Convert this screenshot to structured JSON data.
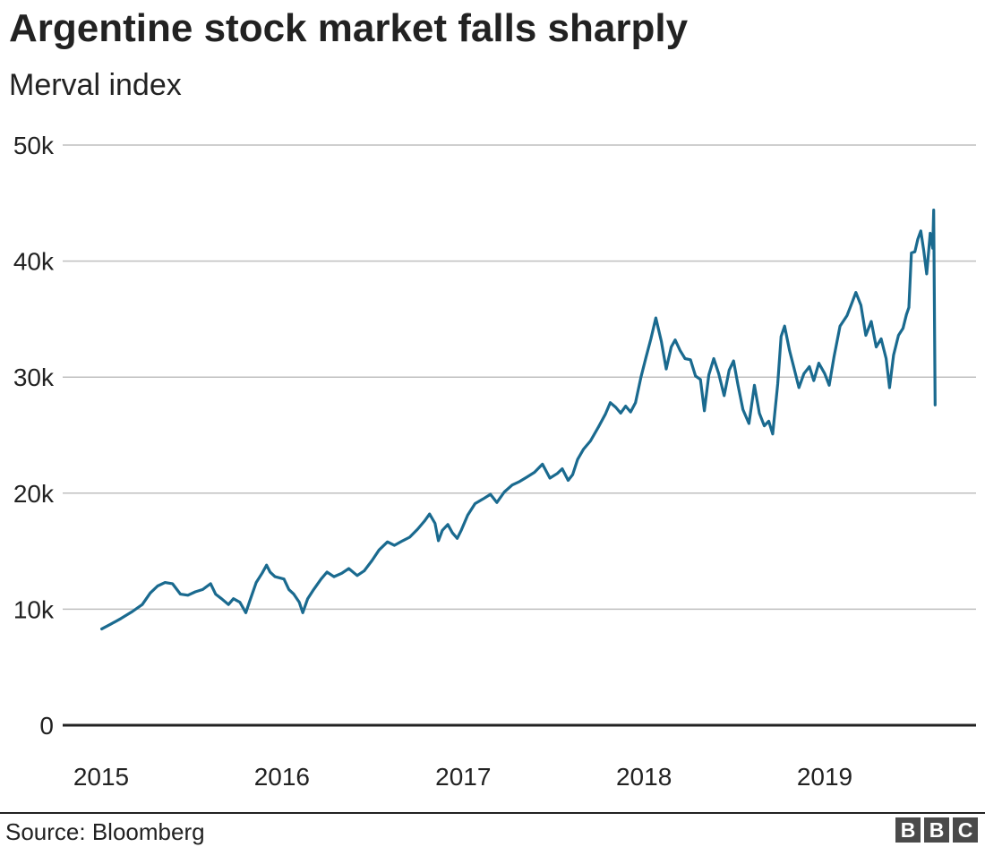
{
  "chart_data": {
    "type": "line",
    "title": "Argentine stock market falls sharply",
    "subtitle": "Merval index",
    "source": "Source: Bloomberg",
    "logo": [
      "B",
      "B",
      "C"
    ],
    "ylim": [
      0,
      50000
    ],
    "y_ticks": [
      {
        "value": 50000,
        "label": "50k"
      },
      {
        "value": 40000,
        "label": "40k"
      },
      {
        "value": 30000,
        "label": "30k"
      },
      {
        "value": 20000,
        "label": "20k"
      },
      {
        "value": 10000,
        "label": "10k"
      },
      {
        "value": 0,
        "label": "0"
      }
    ],
    "xlim": [
      "2015-01-01",
      "2019-09-01"
    ],
    "x_ticks": [
      {
        "value": "2015-01-01",
        "label": "2015"
      },
      {
        "value": "2016-01-01",
        "label": "2016"
      },
      {
        "value": "2017-01-01",
        "label": "2017"
      },
      {
        "value": "2018-01-01",
        "label": "2018"
      },
      {
        "value": "2019-01-01",
        "label": "2019"
      }
    ],
    "grid": true,
    "colors": {
      "line": "#1a6a8f",
      "grid": "#bfbfbf",
      "axis": "#222222"
    },
    "series": [
      {
        "name": "",
        "points": [
          [
            "2015-01-02",
            8300
          ],
          [
            "2015-01-20",
            8700
          ],
          [
            "2015-02-10",
            9200
          ],
          [
            "2015-03-05",
            9800
          ],
          [
            "2015-03-25",
            10400
          ],
          [
            "2015-04-10",
            11400
          ],
          [
            "2015-04-25",
            12000
          ],
          [
            "2015-05-10",
            12300
          ],
          [
            "2015-05-25",
            12200
          ],
          [
            "2015-06-10",
            11300
          ],
          [
            "2015-06-25",
            11200
          ],
          [
            "2015-07-10",
            11500
          ],
          [
            "2015-07-25",
            11700
          ],
          [
            "2015-08-10",
            12200
          ],
          [
            "2015-08-20",
            11300
          ],
          [
            "2015-09-01",
            10900
          ],
          [
            "2015-09-15",
            10400
          ],
          [
            "2015-09-25",
            10900
          ],
          [
            "2015-10-08",
            10600
          ],
          [
            "2015-10-20",
            9700
          ],
          [
            "2015-10-28",
            10700
          ],
          [
            "2015-11-10",
            12300
          ],
          [
            "2015-11-22",
            13100
          ],
          [
            "2015-12-01",
            13800
          ],
          [
            "2015-12-08",
            13200
          ],
          [
            "2015-12-18",
            12800
          ],
          [
            "2016-01-05",
            12600
          ],
          [
            "2016-01-15",
            11700
          ],
          [
            "2016-01-25",
            11300
          ],
          [
            "2016-02-05",
            10600
          ],
          [
            "2016-02-12",
            9700
          ],
          [
            "2016-02-22",
            10900
          ],
          [
            "2016-03-05",
            11700
          ],
          [
            "2016-03-20",
            12600
          ],
          [
            "2016-04-01",
            13200
          ],
          [
            "2016-04-15",
            12800
          ],
          [
            "2016-05-01",
            13100
          ],
          [
            "2016-05-15",
            13500
          ],
          [
            "2016-06-01",
            12900
          ],
          [
            "2016-06-15",
            13300
          ],
          [
            "2016-07-01",
            14200
          ],
          [
            "2016-07-15",
            15100
          ],
          [
            "2016-08-01",
            15800
          ],
          [
            "2016-08-15",
            15500
          ],
          [
            "2016-09-01",
            15900
          ],
          [
            "2016-09-15",
            16200
          ],
          [
            "2016-10-01",
            16900
          ],
          [
            "2016-10-15",
            17600
          ],
          [
            "2016-10-25",
            18200
          ],
          [
            "2016-11-05",
            17400
          ],
          [
            "2016-11-12",
            15900
          ],
          [
            "2016-11-20",
            16800
          ],
          [
            "2016-12-01",
            17300
          ],
          [
            "2016-12-10",
            16600
          ],
          [
            "2016-12-20",
            16100
          ],
          [
            "2016-12-28",
            16800
          ],
          [
            "2017-01-10",
            18100
          ],
          [
            "2017-01-25",
            19100
          ],
          [
            "2017-02-10",
            19500
          ],
          [
            "2017-02-25",
            19900
          ],
          [
            "2017-03-10",
            19200
          ],
          [
            "2017-03-25",
            20100
          ],
          [
            "2017-04-10",
            20700
          ],
          [
            "2017-04-25",
            21000
          ],
          [
            "2017-05-10",
            21400
          ],
          [
            "2017-05-25",
            21800
          ],
          [
            "2017-06-10",
            22500
          ],
          [
            "2017-06-25",
            21300
          ],
          [
            "2017-07-10",
            21700
          ],
          [
            "2017-07-20",
            22100
          ],
          [
            "2017-08-01",
            21100
          ],
          [
            "2017-08-10",
            21600
          ],
          [
            "2017-08-20",
            22900
          ],
          [
            "2017-09-01",
            23800
          ],
          [
            "2017-09-15",
            24500
          ],
          [
            "2017-10-01",
            25700
          ],
          [
            "2017-10-15",
            26800
          ],
          [
            "2017-10-25",
            27800
          ],
          [
            "2017-11-05",
            27400
          ],
          [
            "2017-11-15",
            26900
          ],
          [
            "2017-11-25",
            27500
          ],
          [
            "2017-12-05",
            27000
          ],
          [
            "2017-12-15",
            27800
          ],
          [
            "2017-12-26",
            30000
          ],
          [
            "2018-01-05",
            31700
          ],
          [
            "2018-01-15",
            33300
          ],
          [
            "2018-01-25",
            35100
          ],
          [
            "2018-02-05",
            33100
          ],
          [
            "2018-02-15",
            30700
          ],
          [
            "2018-02-25",
            32600
          ],
          [
            "2018-03-05",
            33200
          ],
          [
            "2018-03-15",
            32300
          ],
          [
            "2018-03-25",
            31600
          ],
          [
            "2018-04-05",
            31500
          ],
          [
            "2018-04-15",
            30100
          ],
          [
            "2018-04-25",
            29800
          ],
          [
            "2018-05-03",
            27100
          ],
          [
            "2018-05-12",
            30200
          ],
          [
            "2018-05-22",
            31600
          ],
          [
            "2018-06-01",
            30300
          ],
          [
            "2018-06-12",
            28400
          ],
          [
            "2018-06-22",
            30600
          ],
          [
            "2018-07-01",
            31400
          ],
          [
            "2018-07-10",
            29300
          ],
          [
            "2018-07-20",
            27200
          ],
          [
            "2018-08-01",
            26000
          ],
          [
            "2018-08-12",
            29300
          ],
          [
            "2018-08-22",
            26900
          ],
          [
            "2018-09-01",
            25800
          ],
          [
            "2018-09-10",
            26200
          ],
          [
            "2018-09-18",
            25100
          ],
          [
            "2018-09-28",
            29400
          ],
          [
            "2018-10-05",
            33500
          ],
          [
            "2018-10-12",
            34400
          ],
          [
            "2018-10-22",
            32300
          ],
          [
            "2018-11-01",
            30600
          ],
          [
            "2018-11-10",
            29100
          ],
          [
            "2018-11-20",
            30300
          ],
          [
            "2018-12-01",
            30900
          ],
          [
            "2018-12-10",
            29700
          ],
          [
            "2018-12-20",
            31200
          ],
          [
            "2019-01-01",
            30300
          ],
          [
            "2019-01-10",
            29300
          ],
          [
            "2019-01-20",
            31800
          ],
          [
            "2019-02-01",
            34400
          ],
          [
            "2019-02-15",
            35300
          ],
          [
            "2019-02-25",
            36400
          ],
          [
            "2019-03-05",
            37300
          ],
          [
            "2019-03-15",
            36200
          ],
          [
            "2019-03-25",
            33600
          ],
          [
            "2019-04-05",
            34800
          ],
          [
            "2019-04-15",
            32600
          ],
          [
            "2019-04-25",
            33300
          ],
          [
            "2019-05-05",
            31600
          ],
          [
            "2019-05-12",
            29100
          ],
          [
            "2019-05-20",
            31900
          ],
          [
            "2019-05-30",
            33600
          ],
          [
            "2019-06-08",
            34200
          ],
          [
            "2019-06-15",
            35400
          ],
          [
            "2019-06-20",
            36000
          ],
          [
            "2019-06-25",
            40700
          ],
          [
            "2019-07-02",
            40800
          ],
          [
            "2019-07-08",
            41900
          ],
          [
            "2019-07-14",
            42600
          ],
          [
            "2019-07-20",
            40900
          ],
          [
            "2019-07-26",
            38900
          ],
          [
            "2019-08-02",
            42400
          ],
          [
            "2019-08-07",
            41100
          ],
          [
            "2019-08-09",
            44400
          ],
          [
            "2019-08-12",
            27600
          ]
        ]
      }
    ]
  }
}
